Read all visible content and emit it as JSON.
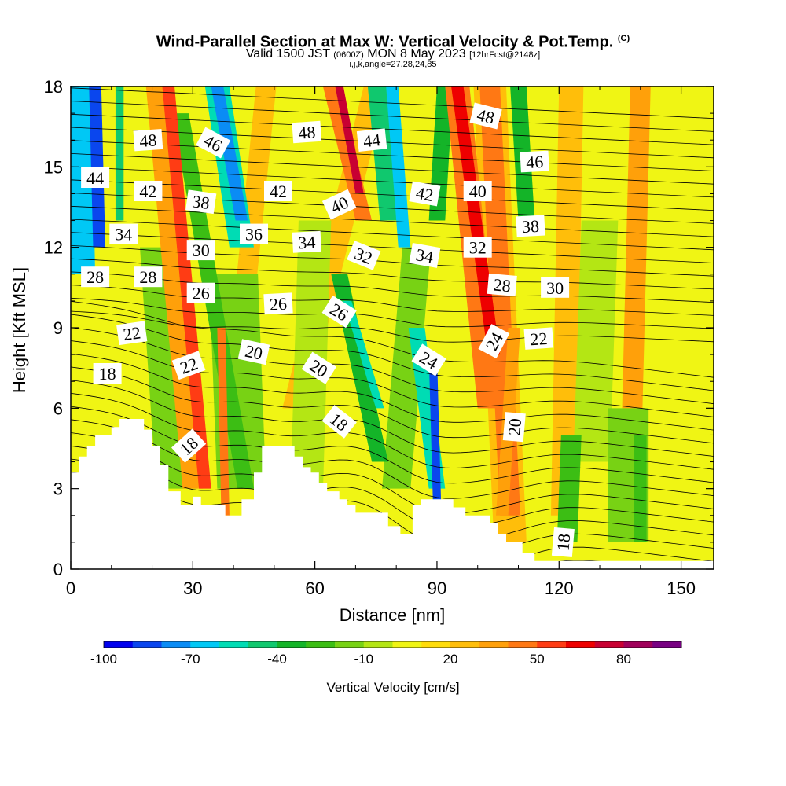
{
  "header": {
    "title": "Wind-Parallel Section at Max W: Vertical Velocity & Pot.Temp.",
    "copyright": "(C)",
    "subtitle_main": "Valid 1500 JST",
    "subtitle_z": "(0600Z)",
    "subtitle_date": "MON 8 May 2023",
    "subtitle_fcst": "[12hrFcst@2148z]",
    "subtitle_indices": "i,j,k,angle=27,28,24,85"
  },
  "chart_data": {
    "type": "heatmap",
    "xlabel": "Distance [nm]",
    "ylabel": "Height [Kft MSL]",
    "xlim": [
      0,
      158
    ],
    "ylim": [
      0,
      18
    ],
    "x_ticks": [
      0,
      30,
      60,
      90,
      120,
      150
    ],
    "y_ticks": [
      0,
      3,
      6,
      9,
      12,
      15,
      18
    ],
    "colorbar": {
      "title": "Vertical Velocity [cm/s]",
      "range": [
        -100,
        100
      ],
      "ticks": [
        -100,
        -70,
        -40,
        -10,
        20,
        50,
        80
      ],
      "colors": [
        "#0000ee",
        "#0a46ee",
        "#0a8cf5",
        "#00c8f5",
        "#00dcb4",
        "#10c86e",
        "#14b428",
        "#3cbe14",
        "#78d214",
        "#b4e614",
        "#f0f514",
        "#ffdc0a",
        "#ffbe0a",
        "#ffa00a",
        "#ff7814",
        "#ff3c14",
        "#ee0000",
        "#c80032",
        "#a0005a",
        "#780082"
      ]
    },
    "terrain_kft": [
      [
        0,
        3.6
      ],
      [
        2,
        3.6
      ],
      [
        2,
        4.2
      ],
      [
        4,
        4.2
      ],
      [
        4,
        4.6
      ],
      [
        6,
        4.6
      ],
      [
        6,
        5.0
      ],
      [
        8,
        5.0
      ],
      [
        8,
        5.0
      ],
      [
        10,
        5.0
      ],
      [
        10,
        5.3
      ],
      [
        12,
        5.3
      ],
      [
        12,
        5.6
      ],
      [
        18,
        5.6
      ],
      [
        18,
        5.2
      ],
      [
        20,
        5.2
      ],
      [
        20,
        4.6
      ],
      [
        22,
        4.6
      ],
      [
        22,
        3.9
      ],
      [
        24,
        3.9
      ],
      [
        24,
        2.9
      ],
      [
        27,
        2.9
      ],
      [
        27,
        2.4
      ],
      [
        30,
        2.4
      ],
      [
        30,
        2.7
      ],
      [
        32,
        2.7
      ],
      [
        32,
        2.4
      ],
      [
        38,
        2.4
      ],
      [
        38,
        2.0
      ],
      [
        42,
        2.0
      ],
      [
        42,
        2.6
      ],
      [
        45,
        2.6
      ],
      [
        45,
        3.6
      ],
      [
        47,
        3.6
      ],
      [
        47,
        4.6
      ],
      [
        55,
        4.6
      ],
      [
        55,
        4.2
      ],
      [
        57,
        4.2
      ],
      [
        57,
        3.8
      ],
      [
        59,
        3.8
      ],
      [
        59,
        3.6
      ],
      [
        61,
        3.6
      ],
      [
        61,
        3.2
      ],
      [
        63,
        3.2
      ],
      [
        63,
        2.9
      ],
      [
        66,
        2.9
      ],
      [
        66,
        2.6
      ],
      [
        68,
        2.6
      ],
      [
        68,
        2.4
      ],
      [
        70,
        2.4
      ],
      [
        70,
        2.1
      ],
      [
        78,
        2.1
      ],
      [
        78,
        1.6
      ],
      [
        81,
        1.6
      ],
      [
        81,
        1.3
      ],
      [
        84,
        1.3
      ],
      [
        84,
        2.4
      ],
      [
        86,
        2.4
      ],
      [
        86,
        2.6
      ],
      [
        94,
        2.6
      ],
      [
        94,
        2.3
      ],
      [
        97,
        2.3
      ],
      [
        97,
        2.0
      ],
      [
        103,
        2.0
      ],
      [
        103,
        1.7
      ],
      [
        105,
        1.7
      ],
      [
        105,
        1.3
      ],
      [
        107,
        1.3
      ],
      [
        107,
        1.0
      ],
      [
        111,
        1.0
      ],
      [
        111,
        0.6
      ],
      [
        114,
        0.6
      ],
      [
        114,
        0.3
      ],
      [
        117,
        0.3
      ],
      [
        117,
        0.3
      ],
      [
        158,
        0.3
      ]
    ],
    "theta_labels": [
      {
        "text": "48",
        "x": 19,
        "y": 16.0,
        "angle": -4
      },
      {
        "text": "46",
        "x": 35,
        "y": 15.9,
        "angle": 28
      },
      {
        "text": "48",
        "x": 58,
        "y": 16.3,
        "angle": -4
      },
      {
        "text": "44",
        "x": 74,
        "y": 16.0,
        "angle": -6
      },
      {
        "text": "48",
        "x": 102,
        "y": 16.9,
        "angle": 14
      },
      {
        "text": "46",
        "x": 114,
        "y": 15.2,
        "angle": -3
      },
      {
        "text": "44",
        "x": 6,
        "y": 14.6,
        "angle": 0
      },
      {
        "text": "42",
        "x": 19,
        "y": 14.1,
        "angle": 0
      },
      {
        "text": "38",
        "x": 32,
        "y": 13.7,
        "angle": 8
      },
      {
        "text": "42",
        "x": 51,
        "y": 14.1,
        "angle": 0
      },
      {
        "text": "40",
        "x": 66,
        "y": 13.6,
        "angle": -25
      },
      {
        "text": "42",
        "x": 87,
        "y": 14.0,
        "angle": 10
      },
      {
        "text": "40",
        "x": 100,
        "y": 14.1,
        "angle": 0
      },
      {
        "text": "34",
        "x": 13,
        "y": 12.5,
        "angle": 0
      },
      {
        "text": "36",
        "x": 45,
        "y": 12.5,
        "angle": 0
      },
      {
        "text": "34",
        "x": 58,
        "y": 12.2,
        "angle": -3
      },
      {
        "text": "30",
        "x": 32,
        "y": 11.9,
        "angle": 0
      },
      {
        "text": "32",
        "x": 72,
        "y": 11.7,
        "angle": 22
      },
      {
        "text": "34",
        "x": 87,
        "y": 11.7,
        "angle": 10
      },
      {
        "text": "32",
        "x": 100,
        "y": 12.0,
        "angle": 0
      },
      {
        "text": "38",
        "x": 113,
        "y": 12.8,
        "angle": -3
      },
      {
        "text": "28",
        "x": 6,
        "y": 10.9,
        "angle": 0
      },
      {
        "text": "28",
        "x": 19,
        "y": 10.9,
        "angle": 0
      },
      {
        "text": "26",
        "x": 32,
        "y": 10.3,
        "angle": 0
      },
      {
        "text": "28",
        "x": 106,
        "y": 10.6,
        "angle": 5
      },
      {
        "text": "30",
        "x": 119,
        "y": 10.5,
        "angle": 0
      },
      {
        "text": "26",
        "x": 51,
        "y": 9.9,
        "angle": -3
      },
      {
        "text": "26",
        "x": 66,
        "y": 9.6,
        "angle": 32
      },
      {
        "text": "22",
        "x": 15,
        "y": 8.8,
        "angle": -8
      },
      {
        "text": "24",
        "x": 104,
        "y": 8.5,
        "angle": -62
      },
      {
        "text": "22",
        "x": 115,
        "y": 8.6,
        "angle": -4
      },
      {
        "text": "20",
        "x": 45,
        "y": 8.1,
        "angle": 12
      },
      {
        "text": "24",
        "x": 88,
        "y": 7.8,
        "angle": 32
      },
      {
        "text": "22",
        "x": 29,
        "y": 7.6,
        "angle": -20
      },
      {
        "text": "20",
        "x": 61,
        "y": 7.5,
        "angle": 32
      },
      {
        "text": "18",
        "x": 9,
        "y": 7.3,
        "angle": 0
      },
      {
        "text": "18",
        "x": 66,
        "y": 5.5,
        "angle": 38
      },
      {
        "text": "20",
        "x": 109,
        "y": 5.3,
        "angle": -85
      },
      {
        "text": "18",
        "x": 29,
        "y": 4.6,
        "angle": -42
      },
      {
        "text": "18",
        "x": 121,
        "y": 1.0,
        "angle": -85
      }
    ]
  }
}
